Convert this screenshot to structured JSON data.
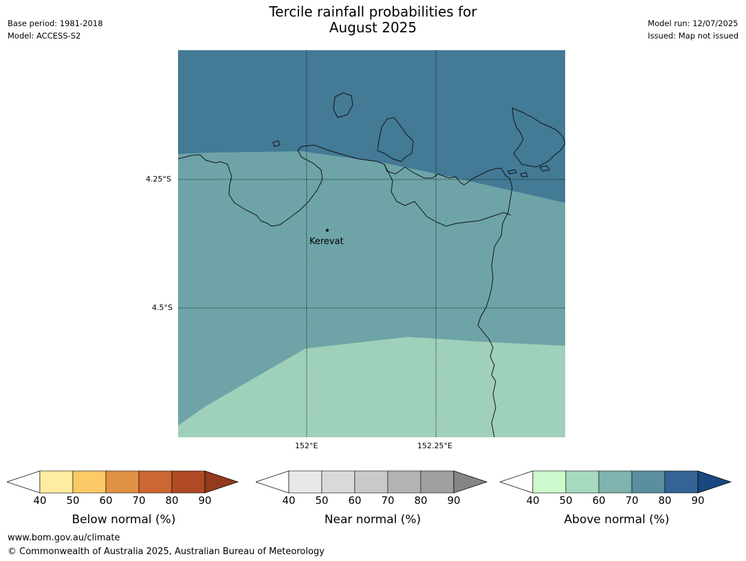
{
  "title": {
    "line1": "Tercile rainfall probabilities for",
    "line2": "August 2025"
  },
  "meta_left": {
    "base_period": "Base period: 1981-2018",
    "model": "Model: ACCESS-S2"
  },
  "meta_right": {
    "model_run": "Model run: 12/07/2025",
    "issued": "Issued: Map not issued"
  },
  "map": {
    "lat_ticks": [
      "4.25°S",
      "4.5°S"
    ],
    "lon_ticks": [
      "152°E",
      "152.25°E"
    ],
    "places": [
      {
        "name": "Kerevat"
      }
    ],
    "category_colors": {
      "above_70_80": "#437a96",
      "above_60_70": "#6ea4a7",
      "above_50_60": "#9fd0b9"
    }
  },
  "legends": [
    {
      "label": "Below normal (%)",
      "ticks": [
        "40",
        "50",
        "60",
        "70",
        "80",
        "90"
      ],
      "colors": [
        "#ffffff",
        "#feeca0",
        "#fdc967",
        "#e09144",
        "#cc6633",
        "#b04a26",
        "#933a1f"
      ]
    },
    {
      "label": "Near normal (%)",
      "ticks": [
        "40",
        "50",
        "60",
        "70",
        "80",
        "90"
      ],
      "colors": [
        "#ffffff",
        "#e8e8e8",
        "#d9d9d9",
        "#c9c9c9",
        "#b3b3b3",
        "#a0a0a0",
        "#858585"
      ]
    },
    {
      "label": "Above normal (%)",
      "ticks": [
        "40",
        "50",
        "60",
        "70",
        "80",
        "90"
      ],
      "colors": [
        "#ffffff",
        "#ccfacc",
        "#a6d9bd",
        "#7fb3ad",
        "#5a8fa0",
        "#346494",
        "#18487e"
      ]
    }
  ],
  "footer": {
    "url": "www.bom.gov.au/climate",
    "copyright": "© Commonwealth of Australia 2025, Australian Bureau of Meteorology"
  }
}
